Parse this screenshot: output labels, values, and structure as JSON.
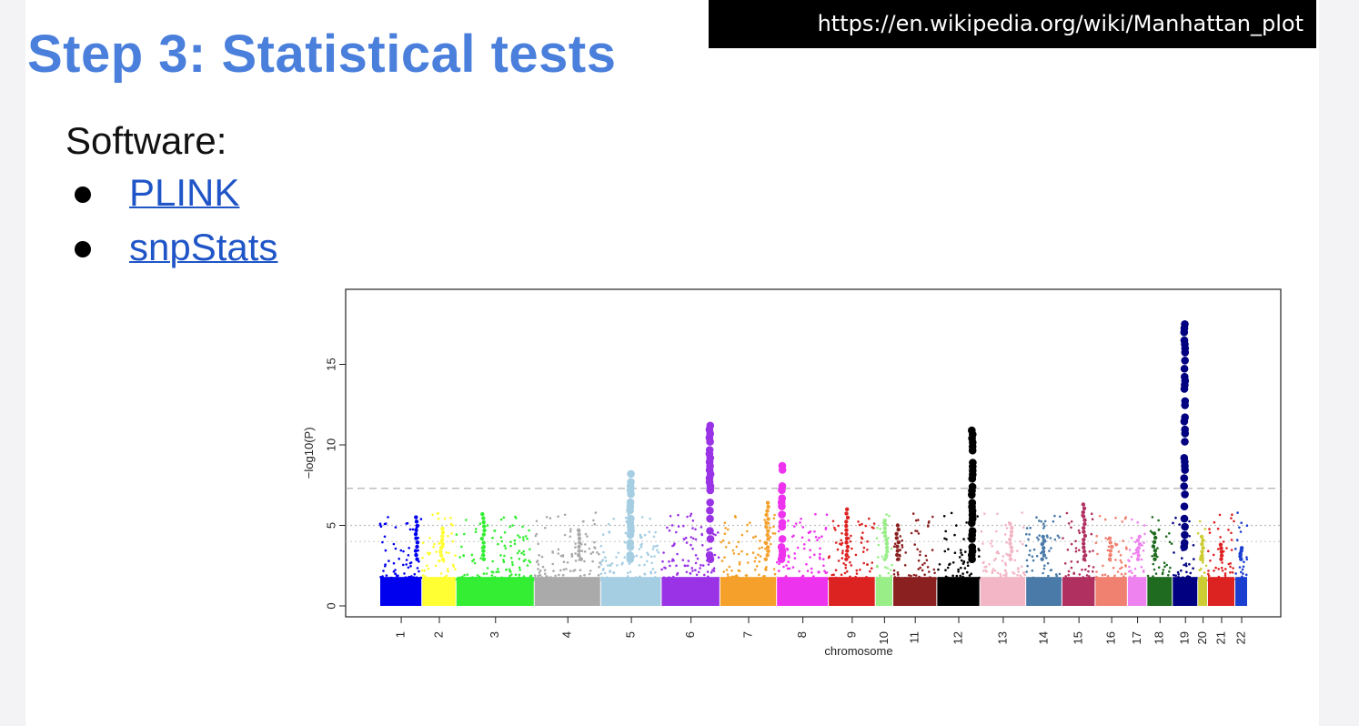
{
  "slide": {
    "title": "Step 3: Statistical tests",
    "source_url": "https://en.wikipedia.org/wiki/Manhattan_plot",
    "software_label": "Software:",
    "software": [
      {
        "label": "PLINK"
      },
      {
        "label": "snpStats"
      }
    ]
  },
  "chart_data": {
    "type": "scatter",
    "subtype": "manhattan",
    "title": "",
    "xlabel": "chromosome",
    "ylabel": "−log10(P)",
    "ylim": [
      0,
      19
    ],
    "yticks": [
      0,
      5,
      10,
      15
    ],
    "grid": false,
    "legend": "none",
    "threshold_lines": [
      {
        "y": 7.3,
        "color": "#aaaaaa",
        "style": "dashed"
      },
      {
        "y": 5.0,
        "color": "#bbbbbb",
        "style": "dotted"
      },
      {
        "y": 4.0,
        "color": "#cccccc",
        "style": "dotted"
      }
    ],
    "chromosomes": [
      {
        "label": "1",
        "color": "#0000ee",
        "base_max": 2.9,
        "peak": [
          {
            "y": 5.5,
            "frac": 0.9
          }
        ]
      },
      {
        "label": "2",
        "color": "#ffff33",
        "base_max": 2.9,
        "peak": [
          {
            "y": 4.8,
            "frac": 0.6
          }
        ]
      },
      {
        "label": "3",
        "color": "#33ee33",
        "base_max": 2.9,
        "peak": [
          {
            "y": 5.7,
            "frac": 0.35
          }
        ]
      },
      {
        "label": "4",
        "color": "#aaaaaa",
        "base_max": 2.9,
        "peak": [
          {
            "y": 4.7,
            "frac": 0.7
          }
        ]
      },
      {
        "label": "5",
        "color": "#a6cee3",
        "base_max": 2.9,
        "peak": [
          {
            "y": 8.2,
            "frac": 0.5
          }
        ]
      },
      {
        "label": "6",
        "color": "#9a33e6",
        "base_max": 2.9,
        "peak": [
          {
            "y": 11.2,
            "frac": 0.85
          }
        ]
      },
      {
        "label": "7",
        "color": "#f4a02a",
        "base_max": 2.9,
        "peak": [
          {
            "y": 6.4,
            "frac": 0.85
          }
        ]
      },
      {
        "label": "8",
        "color": "#ee33ee",
        "base_max": 2.9,
        "peak": [
          {
            "y": 8.7,
            "frac": 0.1
          }
        ]
      },
      {
        "label": "9",
        "color": "#dd2222",
        "base_max": 2.9,
        "peak": [
          {
            "y": 6.0,
            "frac": 0.4
          }
        ]
      },
      {
        "label": "10",
        "color": "#99ee88",
        "base_max": 2.9,
        "peak": [
          {
            "y": 5.3,
            "frac": 0.65
          }
        ]
      },
      {
        "label": "11",
        "color": "#8b2020",
        "base_max": 2.9,
        "peak": [
          {
            "y": 5.0,
            "frac": 0.1
          }
        ]
      },
      {
        "label": "12",
        "color": "#000000",
        "base_max": 2.9,
        "peak": [
          {
            "y": 10.9,
            "frac": 0.85
          }
        ]
      },
      {
        "label": "13",
        "color": "#f2b6c6",
        "base_max": 2.9,
        "peak": [
          {
            "y": 5.1,
            "frac": 0.7
          }
        ]
      },
      {
        "label": "14",
        "color": "#4a7aa8",
        "base_max": 2.9,
        "peak": [
          {
            "y": 4.3,
            "frac": 0.5
          }
        ]
      },
      {
        "label": "15",
        "color": "#b03060",
        "base_max": 2.9,
        "peak": [
          {
            "y": 6.3,
            "frac": 0.7
          }
        ]
      },
      {
        "label": "16",
        "color": "#f08070",
        "base_max": 2.9,
        "peak": [
          {
            "y": 4.2,
            "frac": 0.5
          }
        ]
      },
      {
        "label": "17",
        "color": "#ee82ee",
        "base_max": 2.9,
        "peak": [
          {
            "y": 4.3,
            "frac": 0.6
          }
        ]
      },
      {
        "label": "18",
        "color": "#1f6b1f",
        "base_max": 2.9,
        "peak": [
          {
            "y": 4.5,
            "frac": 0.3
          }
        ]
      },
      {
        "label": "19",
        "color": "#000080",
        "base_max": 2.9,
        "peak": [
          {
            "y": 17.5,
            "frac": 0.5
          }
        ]
      },
      {
        "label": "20",
        "color": "#cccc33",
        "base_max": 2.9,
        "peak": [
          {
            "y": 4.3,
            "frac": 0.5
          }
        ]
      },
      {
        "label": "21",
        "color": "#dd2222",
        "base_max": 2.9,
        "peak": [
          {
            "y": 3.8,
            "frac": 0.5
          }
        ]
      },
      {
        "label": "22",
        "color": "#1a3fd0",
        "base_max": 2.9,
        "peak": [
          {
            "y": 3.6,
            "frac": 0.5
          }
        ]
      }
    ]
  }
}
